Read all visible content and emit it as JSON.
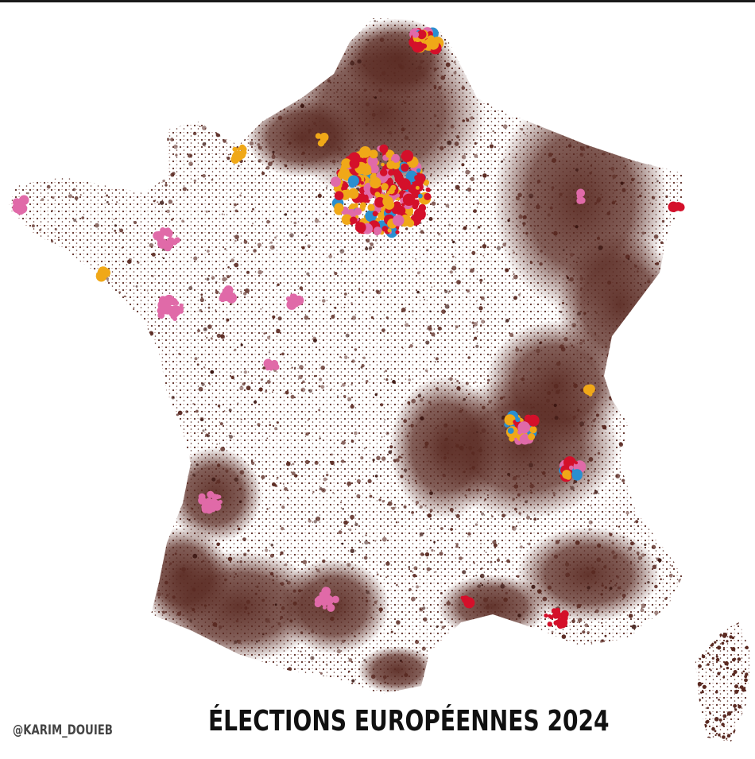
{
  "title": "ÉLECTIONS EUROPÉENNES 2024",
  "credit": "@KARIM_DOUIEB",
  "colors": {
    "background": "#ffffff",
    "dominant_party": "#5a2a22",
    "red": "#d4102a",
    "orange": "#f0a818",
    "pink": "#e06aa8",
    "blue": "#2a8fd0",
    "dark": "#3a1510"
  }
}
